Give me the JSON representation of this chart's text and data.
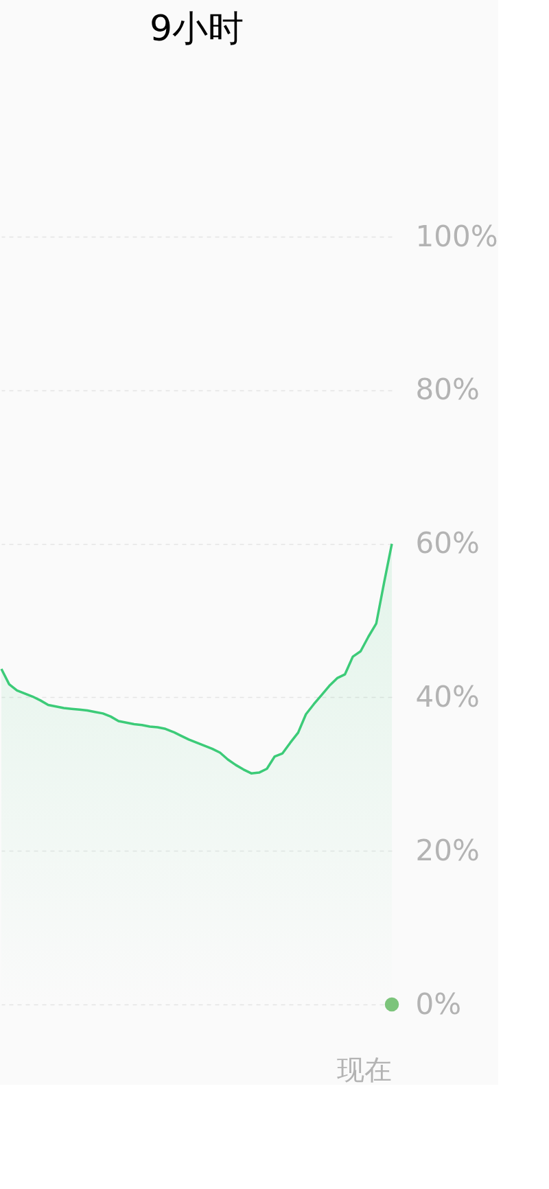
{
  "chart_data": {
    "type": "area",
    "title": "9小时",
    "annotations": [
      "现在"
    ],
    "categories": [
      null,
      null,
      null,
      null,
      null,
      null,
      null,
      null,
      null,
      null,
      null,
      null,
      null,
      null,
      null,
      null,
      null,
      null,
      null,
      null,
      null,
      null,
      null,
      null,
      null,
      null,
      null,
      null,
      null,
      null,
      null,
      null,
      null,
      null,
      null,
      null,
      null,
      null,
      null,
      null,
      null,
      null,
      null,
      null,
      null,
      null,
      null,
      null,
      null,
      null,
      null
    ],
    "ylim": [
      0,
      100
    ],
    "yticks": [
      {
        "value": 0,
        "label": "0%"
      },
      {
        "value": 20,
        "label": "20%"
      },
      {
        "value": 40,
        "label": "40%"
      },
      {
        "value": 60,
        "label": "60%"
      },
      {
        "value": 80,
        "label": "80%"
      },
      {
        "value": 100,
        "label": "100%"
      }
    ],
    "grid": "y",
    "series": [
      {
        "color": "#3ccb78",
        "values": [
          43.7,
          41.7,
          40.9,
          40.5,
          40.1,
          39.6,
          39.0,
          38.8,
          38.6,
          38.5,
          38.4,
          38.3,
          38.1,
          37.9,
          37.5,
          36.9,
          36.7,
          36.5,
          36.4,
          36.2,
          36.1,
          35.9,
          35.5,
          35.0,
          34.5,
          34.1,
          33.7,
          33.3,
          32.8,
          31.9,
          31.2,
          30.6,
          30.1,
          30.2,
          30.7,
          32.3,
          32.7,
          34.1,
          35.4,
          37.8,
          39.1,
          40.3,
          41.5,
          42.5,
          43.0,
          45.3,
          46.0,
          47.9,
          49.6,
          54.9,
          60.0
        ]
      },
      {
        "type": "scatter",
        "color": "#7cc47b",
        "marker": "circle",
        "values": [
          null,
          null,
          null,
          null,
          null,
          null,
          null,
          null,
          null,
          null,
          null,
          null,
          null,
          null,
          null,
          null,
          null,
          null,
          null,
          null,
          null,
          null,
          null,
          null,
          null,
          null,
          null,
          null,
          null,
          null,
          null,
          null,
          null,
          null,
          null,
          null,
          null,
          null,
          null,
          null,
          null,
          null,
          null,
          null,
          null,
          null,
          null,
          null,
          null,
          null,
          0
        ]
      }
    ]
  }
}
